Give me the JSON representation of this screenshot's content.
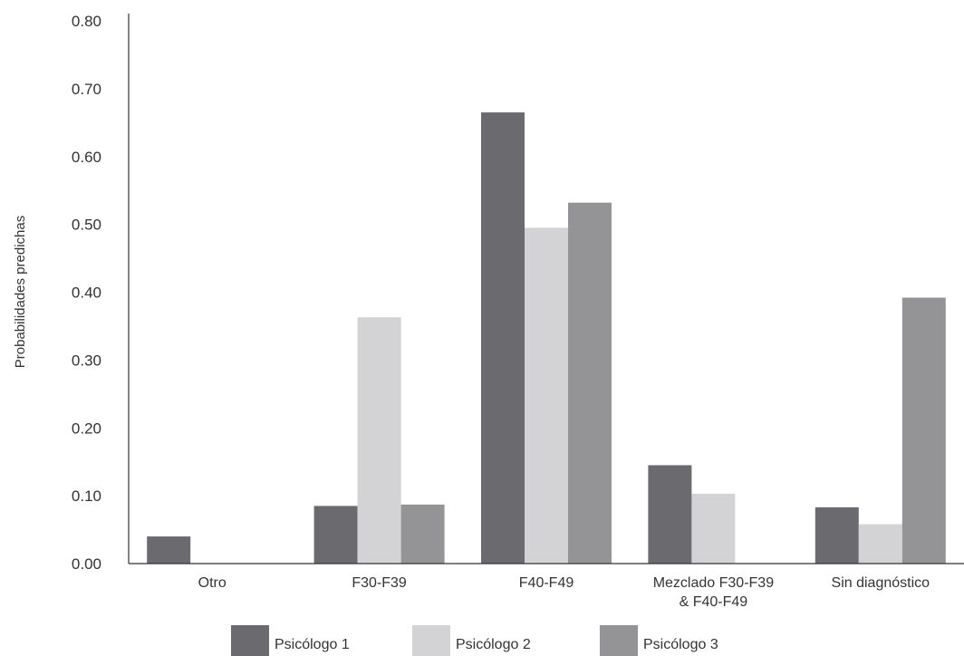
{
  "chart_data": {
    "type": "bar",
    "title": "",
    "xlabel": "",
    "ylabel": "Probabilidades predichas",
    "ylim": [
      0,
      0.8
    ],
    "yticks": [
      "0.00",
      "0.10",
      "0.20",
      "0.30",
      "0.40",
      "0.50",
      "0.60",
      "0.70",
      "0.80"
    ],
    "categories": [
      [
        "Otro"
      ],
      [
        "F30-F39"
      ],
      [
        "F40-F49"
      ],
      [
        "Mezclado F30-F39",
        "& F40-F49"
      ],
      [
        "Sin diagnóstico"
      ]
    ],
    "series": [
      {
        "name": "Psicólogo 1",
        "color": "#6b6b6f",
        "values": [
          0.04,
          0.085,
          0.665,
          0.145,
          0.083
        ]
      },
      {
        "name": "Psicólogo 2",
        "color": "#d3d3d5",
        "values": [
          0,
          0.363,
          0.495,
          0.103,
          0.058
        ]
      },
      {
        "name": "Psicólogo 3",
        "color": "#949497",
        "values": [
          0,
          0.087,
          0.532,
          0,
          0.392
        ]
      }
    ],
    "grid": false,
    "legend_position": "bottom"
  }
}
